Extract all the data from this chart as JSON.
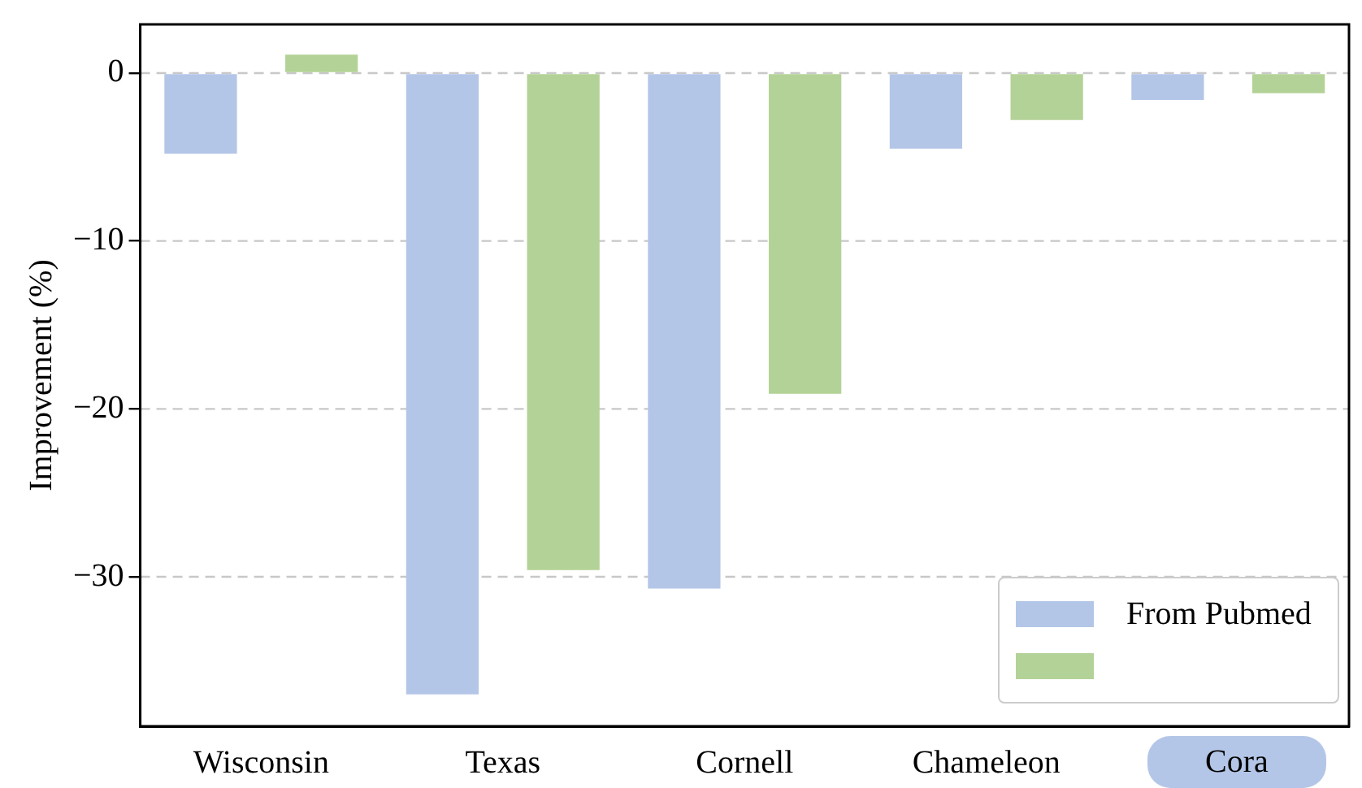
{
  "chart_data": {
    "type": "bar",
    "ylabel": "Improvement (%)",
    "categories": [
      "Wisconsin",
      "Texas",
      "Cornell",
      "Chameleon",
      null
    ],
    "series": [
      {
        "name": "From Pubmed",
        "color": "#b4c6e7",
        "values": [
          -4.8,
          -37.0,
          -30.7,
          -4.5,
          -1.6
        ]
      },
      {
        "color": "#b3d297",
        "values": [
          1.1,
          -29.6,
          -19.1,
          -2.8,
          -1.2
        ]
      }
    ],
    "ylim": [
      -38.9,
      2.9
    ],
    "yticks": [
      0,
      {
        "value": -10,
        "label": "−10"
      },
      {
        "value": -20,
        "label": "−20"
      },
      {
        "value": -30,
        "label": "−30"
      }
    ],
    "grid": "y",
    "legend": "bottom right",
    "annotations": [
      "Cora"
    ]
  }
}
